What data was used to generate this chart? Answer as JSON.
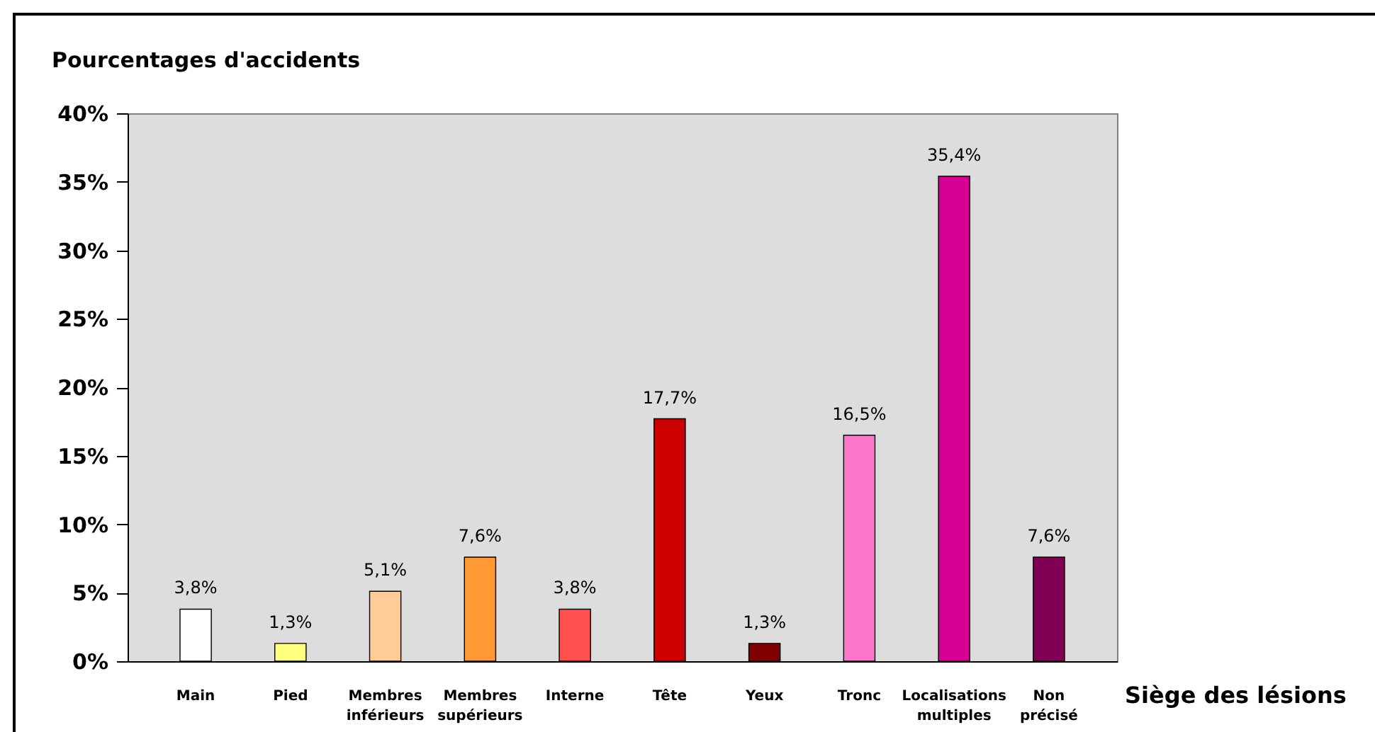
{
  "chart_data": {
    "type": "bar",
    "xlabel": "Siège des lésions",
    "ylabel": "Pourcentages d'accidents",
    "categories": [
      "Main",
      "Pied",
      "Membres inférieurs",
      "Membres supérieurs",
      "Interne",
      "Tête",
      "Yeux",
      "Tronc",
      "Localisations multiples",
      "Non précisé"
    ],
    "values": [
      3.8,
      1.3,
      5.1,
      7.6,
      3.8,
      17.7,
      1.3,
      16.5,
      35.4,
      7.6
    ],
    "value_labels": [
      "3,8%",
      "1,3%",
      "5,1%",
      "7,6%",
      "3,8%",
      "17,7%",
      "1,3%",
      "16,5%",
      "35,4%",
      "7,6%"
    ],
    "colors": [
      "#ffffff",
      "#ffff80",
      "#ffcc99",
      "#ff9933",
      "#ff5050",
      "#cc0000",
      "#800000",
      "#ff77cc",
      "#d60093",
      "#800055"
    ],
    "ylim": [
      0,
      40
    ],
    "yticks": [
      {
        "value": 0,
        "label": "0%"
      },
      {
        "value": 5,
        "label": "5%"
      },
      {
        "value": 10,
        "label": "10%"
      },
      {
        "value": 15,
        "label": "15%"
      },
      {
        "value": 20,
        "label": "20%"
      },
      {
        "value": 25,
        "label": "25%"
      },
      {
        "value": 30,
        "label": "30%"
      },
      {
        "value": 35,
        "label": "35%"
      },
      {
        "value": 40,
        "label": "40%"
      }
    ]
  }
}
